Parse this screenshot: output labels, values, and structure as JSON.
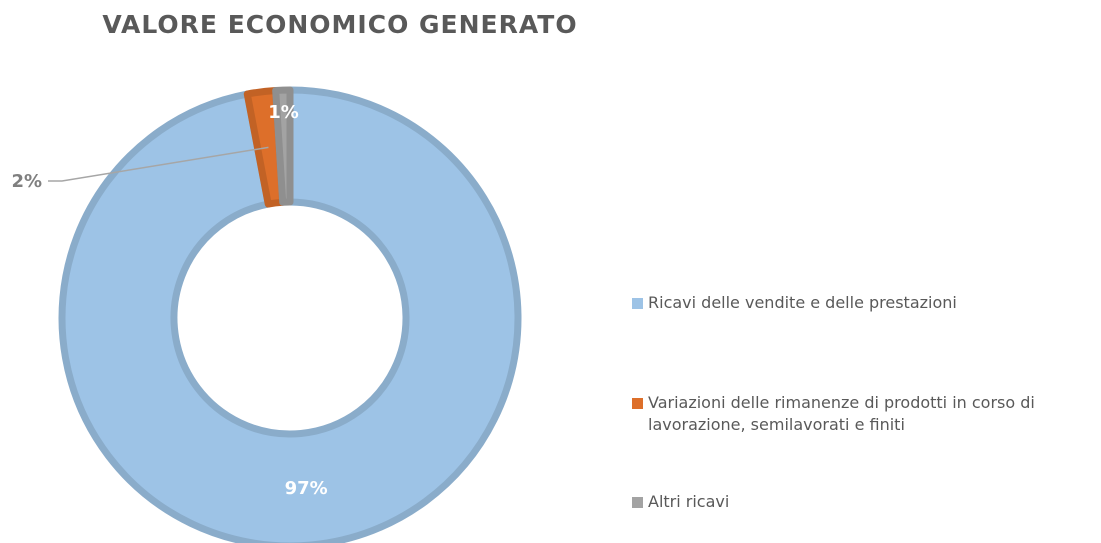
{
  "chart_data": {
    "type": "pie",
    "title": "VALORE ECONOMICO GENERATO",
    "categories": [
      "Ricavi delle vendite e delle prestazioni",
      "Variazioni delle rimanenze di prodotti in corso di lavorazione, semilavorati e finiti",
      "Altri ricavi"
    ],
    "values": [
      97,
      2,
      1
    ],
    "value_labels": [
      "97%",
      "2%",
      "1%"
    ],
    "colors": [
      "#9dc3e6",
      "#dd6f2a",
      "#a3a3a3"
    ],
    "legend": "right"
  }
}
